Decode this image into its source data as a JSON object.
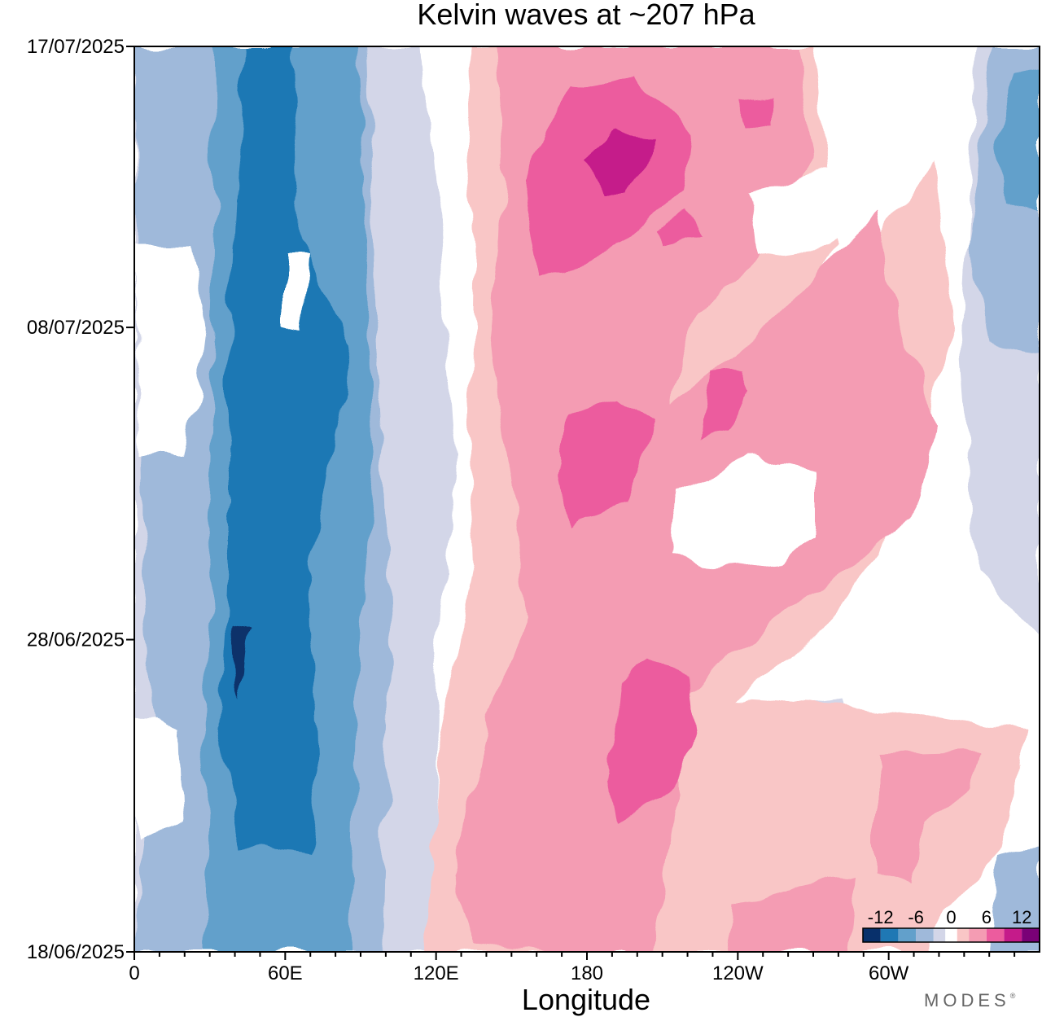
{
  "chart_data": {
    "type": "heatmap",
    "title": "Kelvin waves at ~207 hPa",
    "xlabel": "Longitude",
    "ylabel": "",
    "x_ticks": [
      "0",
      "60E",
      "120E",
      "180",
      "120W",
      "60W"
    ],
    "y_ticks": [
      "18/06/2025",
      "28/06/2025",
      "08/07/2025",
      "17/07/2025"
    ],
    "x_range": [
      0,
      360
    ],
    "y_range": [
      "18/06/2025",
      "17/07/2025"
    ],
    "grid": false,
    "legend": "bottom-right",
    "colorbar": {
      "tick_labels": [
        "-12",
        "-6",
        "0",
        "6",
        "12"
      ],
      "levels": [
        -15,
        -12,
        -9,
        -6,
        -3,
        -1,
        1,
        3,
        6,
        9,
        12,
        15
      ],
      "colors": [
        "#08306b",
        "#1f78b4",
        "#62a0cb",
        "#9fb9da",
        "#d3d6e8",
        "#ffffff",
        "#f9c6c6",
        "#f49cb3",
        "#ec5c9e",
        "#c51b8a",
        "#7a0177"
      ]
    },
    "regions": [
      {
        "value": -4.5,
        "lon": [
          0,
          115
        ],
        "date": [
          "18/06/2025",
          "17/07/2025"
        ]
      },
      {
        "value": -7.5,
        "lon": [
          10,
          100
        ],
        "date": [
          "18/06/2025",
          "17/07/2025"
        ]
      },
      {
        "value": -10.5,
        "lon": [
          20,
          85
        ],
        "date": [
          "18/06/2025",
          "17/07/2025"
        ]
      },
      {
        "value": -13.5,
        "lon": [
          35,
          45
        ],
        "date": [
          "23/06/2025",
          "30/06/2025"
        ]
      },
      {
        "value": 4.5,
        "lon": [
          120,
          340
        ],
        "date": [
          "18/06/2025",
          "17/07/2025"
        ]
      },
      {
        "value": 7.5,
        "lon": [
          145,
          320
        ],
        "date": [
          "18/06/2025",
          "17/07/2025"
        ]
      },
      {
        "value": 10.5,
        "lon": [
          155,
          210
        ],
        "date": [
          "22/06/2025",
          "17/07/2025"
        ]
      },
      {
        "value": 13.5,
        "lon": [
          180,
          205
        ],
        "date": [
          "13/07/2025",
          "15/07/2025"
        ]
      },
      {
        "value": -4.5,
        "lon": [
          330,
          360
        ],
        "date": [
          "30/06/2025",
          "17/07/2025"
        ]
      }
    ]
  },
  "branding": {
    "text": "MODES",
    "mark": "®"
  }
}
